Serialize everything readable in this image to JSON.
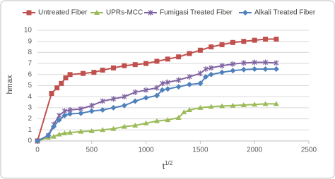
{
  "chart_data": {
    "type": "line",
    "x_label": "t",
    "x_label_superscript": "1/2",
    "y_label": "hmax",
    "xlim": [
      0,
      2500
    ],
    "xticks": [
      0,
      500,
      1000,
      1500,
      2000,
      2500
    ],
    "ylim": [
      0,
      10
    ],
    "yticks": [
      0,
      1,
      2,
      3,
      4,
      5,
      6,
      7,
      8,
      9,
      10
    ],
    "grid": true,
    "legend": "top",
    "series": [
      {
        "name": "Untreated Fiber",
        "color": "#c0504d",
        "marker": "square",
        "x": [
          0,
          130,
          180,
          220,
          260,
          300,
          420,
          520,
          600,
          700,
          800,
          900,
          1000,
          1100,
          1200,
          1300,
          1400,
          1500,
          1600,
          1700,
          1800,
          1900,
          2000,
          2100,
          2200
        ],
        "values": [
          0,
          4.3,
          4.8,
          5.2,
          5.7,
          6.0,
          6.1,
          6.2,
          6.4,
          6.6,
          6.8,
          6.9,
          7.0,
          7.2,
          7.4,
          7.6,
          7.9,
          8.2,
          8.5,
          8.7,
          8.9,
          9.0,
          9.1,
          9.2,
          9.2
        ]
      },
      {
        "name": "UPRs-MCC",
        "color": "#9bbb59",
        "marker": "triangle",
        "x": [
          0,
          100,
          150,
          200,
          250,
          300,
          400,
          500,
          600,
          700,
          800,
          900,
          1000,
          1100,
          1200,
          1300,
          1350,
          1400,
          1500,
          1600,
          1700,
          1800,
          1900,
          2000,
          2100,
          2200
        ],
        "values": [
          0,
          0.3,
          0.4,
          0.6,
          0.7,
          0.75,
          0.85,
          0.9,
          1.0,
          1.1,
          1.3,
          1.4,
          1.6,
          1.8,
          1.9,
          2.1,
          2.6,
          2.8,
          3.0,
          3.1,
          3.15,
          3.2,
          3.25,
          3.3,
          3.35,
          3.35
        ]
      },
      {
        "name": "Fumigasi Treated Fiber",
        "color": "#8064a2",
        "marker": "star",
        "x": [
          0,
          100,
          150,
          200,
          250,
          300,
          400,
          500,
          600,
          700,
          800,
          900,
          1000,
          1100,
          1150,
          1200,
          1300,
          1400,
          1500,
          1550,
          1600,
          1700,
          1800,
          1900,
          2000,
          2100,
          2200
        ],
        "values": [
          0,
          0.5,
          1.5,
          2.3,
          2.7,
          2.8,
          2.9,
          3.2,
          3.6,
          3.8,
          4.0,
          4.4,
          4.6,
          4.8,
          5.2,
          5.3,
          5.5,
          5.8,
          6.1,
          6.5,
          6.6,
          6.8,
          6.95,
          7.05,
          7.1,
          7.1,
          7.05
        ]
      },
      {
        "name": "Alkali Treated Fiber",
        "color": "#4f81bd",
        "marker": "diamond",
        "x": [
          0,
          100,
          150,
          200,
          250,
          300,
          400,
          500,
          600,
          700,
          800,
          900,
          1000,
          1100,
          1150,
          1200,
          1300,
          1400,
          1500,
          1550,
          1600,
          1700,
          1800,
          1900,
          2000,
          2100,
          2200
        ],
        "values": [
          0,
          0.5,
          1.3,
          1.9,
          2.3,
          2.45,
          2.5,
          2.7,
          2.8,
          3.0,
          3.2,
          3.6,
          3.9,
          4.1,
          4.6,
          4.7,
          4.9,
          5.1,
          5.2,
          5.8,
          6.0,
          6.2,
          6.35,
          6.45,
          6.5,
          6.5,
          6.5
        ]
      }
    ]
  }
}
